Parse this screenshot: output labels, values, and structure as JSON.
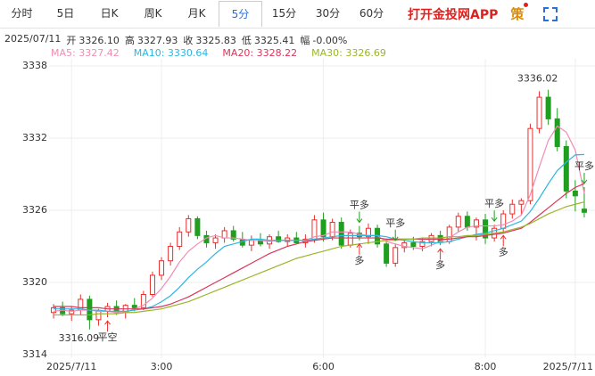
{
  "header": {
    "tabs": [
      "分时",
      "5日",
      "日K",
      "周K",
      "月K",
      "5分",
      "15分",
      "30分",
      "60分"
    ],
    "selected_tab": 5,
    "app_link": "打开金投网APP",
    "strategy": "策",
    "date": "2025/07/11",
    "quote": [
      {
        "label": "开",
        "value": "3326.10"
      },
      {
        "label": "高",
        "value": "3327.93"
      },
      {
        "label": "收",
        "value": "3325.83"
      },
      {
        "label": "低",
        "value": "3325.41"
      },
      {
        "label": "幅",
        "value": "-0.00%"
      }
    ]
  },
  "chart_data": {
    "type": "candlestick",
    "categories": [
      null,
      null,
      "2025/7/11",
      null,
      null,
      null,
      null,
      null,
      null,
      null,
      null,
      null,
      "3:00",
      null,
      null,
      null,
      null,
      null,
      null,
      null,
      null,
      null,
      null,
      null,
      null,
      null,
      null,
      null,
      null,
      null,
      "6:00",
      null,
      null,
      null,
      null,
      null,
      null,
      null,
      null,
      null,
      null,
      null,
      null,
      null,
      null,
      null,
      null,
      null,
      "8:00",
      null,
      null,
      null,
      null,
      null,
      null,
      null,
      null,
      null,
      "2025/7/11",
      null
    ],
    "open": [
      3317.5,
      3317.9,
      3317.4,
      3317.7,
      3318.6,
      3316.9,
      3317.6,
      3318.0,
      3317.5,
      3318.1,
      3317.9,
      3319.0,
      3320.6,
      3321.8,
      3323.0,
      3324.2,
      3325.3,
      3323.9,
      3323.3,
      3323.7,
      3324.3,
      3323.6,
      3323.1,
      3323.5,
      3323.2,
      3323.8,
      3323.4,
      3323.7,
      3323.3,
      3323.6,
      3325.2,
      3323.8,
      3325.0,
      3323.1,
      3324.1,
      3323.8,
      3324.5,
      3323.2,
      3321.6,
      3322.9,
      3323.3,
      3323.0,
      3323.4,
      3323.9,
      3323.4,
      3324.6,
      3325.5,
      3324.6,
      3325.2,
      3323.7,
      3324.5,
      3325.7,
      3326.5,
      3326.8,
      3332.8,
      3335.4,
      3333.6,
      3331.3,
      3327.6,
      3326.1
    ],
    "high": [
      3318.2,
      3318.4,
      3318.0,
      3319.0,
      3318.9,
      3317.8,
      3318.3,
      3318.5,
      3318.2,
      3318.7,
      3319.3,
      3320.9,
      3322.1,
      3323.3,
      3324.6,
      3325.6,
      3325.5,
      3324.3,
      3324.0,
      3324.6,
      3324.7,
      3324.2,
      3323.9,
      3324.1,
      3324.0,
      3324.3,
      3324.0,
      3324.2,
      3324.0,
      3325.6,
      3325.8,
      3325.3,
      3325.4,
      3324.4,
      3324.7,
      3324.9,
      3324.8,
      3323.6,
      3323.2,
      3323.6,
      3323.8,
      3323.7,
      3324.1,
      3324.3,
      3324.8,
      3325.8,
      3325.9,
      3325.4,
      3325.7,
      3324.8,
      3326.0,
      3326.9,
      3327.0,
      3333.2,
      3335.9,
      3336.02,
      3334.5,
      3331.8,
      3328.5,
      3327.93
    ],
    "low": [
      3317.0,
      3317.2,
      3316.8,
      3317.3,
      3316.09,
      3316.4,
      3317.1,
      3317.3,
      3317.0,
      3317.6,
      3317.7,
      3318.8,
      3320.2,
      3321.4,
      3322.7,
      3323.8,
      3323.6,
      3322.9,
      3322.8,
      3323.3,
      3323.4,
      3322.9,
      3322.6,
      3323.0,
      3322.8,
      3323.3,
      3323.0,
      3323.2,
      3322.9,
      3323.3,
      3323.4,
      3323.5,
      3322.8,
      3322.9,
      3323.5,
      3323.2,
      3322.9,
      3321.3,
      3321.3,
      3322.5,
      3322.7,
      3322.6,
      3323.0,
      3323.1,
      3323.2,
      3324.2,
      3324.3,
      3323.5,
      3323.2,
      3323.4,
      3324.2,
      3325.3,
      3325.6,
      3326.5,
      3332.4,
      3333.1,
      3330.9,
      3327.0,
      3325.9,
      3325.41
    ],
    "close": [
      3317.9,
      3317.4,
      3317.7,
      3318.6,
      3316.9,
      3317.6,
      3318.0,
      3317.5,
      3318.1,
      3317.9,
      3319.0,
      3320.6,
      3321.8,
      3323.0,
      3324.2,
      3325.3,
      3323.9,
      3323.3,
      3323.7,
      3324.3,
      3323.6,
      3323.1,
      3323.5,
      3323.2,
      3323.8,
      3323.4,
      3323.7,
      3323.3,
      3323.6,
      3325.2,
      3323.8,
      3325.0,
      3323.1,
      3324.1,
      3323.8,
      3324.5,
      3323.2,
      3321.6,
      3322.9,
      3323.3,
      3323.0,
      3323.4,
      3323.9,
      3323.4,
      3324.6,
      3325.5,
      3324.6,
      3325.2,
      3323.7,
      3324.5,
      3325.7,
      3326.5,
      3326.8,
      3332.8,
      3335.4,
      3333.6,
      3331.3,
      3327.6,
      3327.2,
      3325.83
    ],
    "up_color": "#e8312f",
    "down_color": "#1f9e1f",
    "ylim": [
      3314,
      3338
    ],
    "yticks": [
      3338,
      3332,
      3326,
      3320,
      3314
    ],
    "grid": true,
    "series": [
      {
        "name": "MA5: 3327.42",
        "color": "#f08db2",
        "values": [
          3317.6,
          3317.7,
          3317.6,
          3317.7,
          3317.7,
          3317.6,
          3317.6,
          3317.5,
          3317.5,
          3317.8,
          3318.1,
          3318.7,
          3319.5,
          3320.5,
          3321.7,
          3322.6,
          3323.2,
          3323.7,
          3323.9,
          3323.7,
          3323.7,
          3323.6,
          3323.5,
          3323.5,
          3323.4,
          3323.5,
          3323.5,
          3323.5,
          3323.5,
          3323.8,
          3323.9,
          3324.2,
          3324.2,
          3324.2,
          3324.0,
          3323.9,
          3323.9,
          3323.4,
          3323.2,
          3323.0,
          3322.9,
          3322.8,
          3323.1,
          3323.4,
          3323.7,
          3324.2,
          3324.6,
          3324.7,
          3324.7,
          3324.7,
          3324.8,
          3325.1,
          3325.6,
          3327.3,
          3329.6,
          3331.8,
          3333.0,
          3332.5,
          3331.0,
          3327.42
        ]
      },
      {
        "name": "MA10: 3330.64",
        "color": "#2bb7e0",
        "values": [
          3317.8,
          3317.8,
          3317.8,
          3317.8,
          3317.7,
          3317.7,
          3317.6,
          3317.6,
          3317.6,
          3317.7,
          3317.8,
          3318.0,
          3318.4,
          3318.9,
          3319.6,
          3320.4,
          3321.1,
          3321.7,
          3322.4,
          3323.0,
          3323.2,
          3323.4,
          3323.6,
          3323.6,
          3323.5,
          3323.5,
          3323.5,
          3323.5,
          3323.5,
          3323.6,
          3323.7,
          3323.8,
          3323.9,
          3323.9,
          3323.9,
          3323.9,
          3323.9,
          3323.8,
          3323.6,
          3323.5,
          3323.4,
          3323.3,
          3323.3,
          3323.3,
          3323.4,
          3323.6,
          3323.8,
          3324.0,
          3324.1,
          3324.3,
          3324.5,
          3324.8,
          3325.1,
          3325.9,
          3327.0,
          3328.2,
          3329.3,
          3330.0,
          3330.6,
          3330.64
        ]
      },
      {
        "name": "MA20: 3328.22",
        "color": "#d9365c",
        "values": [
          3318.0,
          3318.0,
          3318.0,
          3317.9,
          3317.9,
          3317.9,
          3317.8,
          3317.8,
          3317.8,
          3317.8,
          3317.8,
          3317.9,
          3318.0,
          3318.2,
          3318.5,
          3318.8,
          3319.2,
          3319.6,
          3320.0,
          3320.4,
          3320.8,
          3321.2,
          3321.6,
          3322.0,
          3322.4,
          3322.7,
          3323.0,
          3323.2,
          3323.4,
          3323.5,
          3323.6,
          3323.7,
          3323.7,
          3323.7,
          3323.7,
          3323.7,
          3323.7,
          3323.6,
          3323.6,
          3323.6,
          3323.6,
          3323.6,
          3323.6,
          3323.6,
          3323.6,
          3323.7,
          3323.8,
          3323.8,
          3323.9,
          3324.0,
          3324.1,
          3324.3,
          3324.5,
          3325.0,
          3325.6,
          3326.2,
          3326.8,
          3327.4,
          3327.9,
          3328.22
        ]
      },
      {
        "name": "MA30: 3326.69",
        "color": "#9ab52b",
        "values": [
          3317.3,
          3317.3,
          3317.3,
          3317.3,
          3317.3,
          3317.4,
          3317.4,
          3317.4,
          3317.5,
          3317.5,
          3317.6,
          3317.7,
          3317.8,
          3318.0,
          3318.2,
          3318.4,
          3318.7,
          3319.0,
          3319.3,
          3319.6,
          3319.9,
          3320.2,
          3320.5,
          3320.8,
          3321.1,
          3321.4,
          3321.7,
          3322.0,
          3322.2,
          3322.4,
          3322.6,
          3322.8,
          3323.0,
          3323.1,
          3323.2,
          3323.3,
          3323.4,
          3323.5,
          3323.5,
          3323.6,
          3323.6,
          3323.7,
          3323.7,
          3323.7,
          3323.8,
          3323.8,
          3323.9,
          3323.9,
          3324.0,
          3324.1,
          3324.2,
          3324.4,
          3324.6,
          3324.9,
          3325.3,
          3325.7,
          3326.0,
          3326.3,
          3326.5,
          3326.69
        ]
      }
    ],
    "extremes": [
      {
        "index": 55,
        "of": "high"
      },
      {
        "index": 4,
        "of": "low"
      }
    ],
    "signals": [
      {
        "text": "平空",
        "index": 6,
        "side": "below",
        "color": "#e8312f"
      },
      {
        "text": "多",
        "index": 34,
        "side": "below",
        "color": "#e8312f"
      },
      {
        "text": "多",
        "index": 43,
        "side": "below",
        "color": "#e8312f"
      },
      {
        "text": "多",
        "index": 50,
        "side": "below",
        "color": "#e8312f"
      },
      {
        "text": "平多",
        "index": 34,
        "side": "above",
        "color": "#1f9e1f"
      },
      {
        "text": "平多",
        "index": 38,
        "side": "above",
        "color": "#1f9e1f"
      },
      {
        "text": "平多",
        "index": 49,
        "side": "above",
        "color": "#1f9e1f"
      },
      {
        "text": "平多",
        "index": 59,
        "side": "above",
        "color": "#1f9e1f"
      }
    ]
  }
}
